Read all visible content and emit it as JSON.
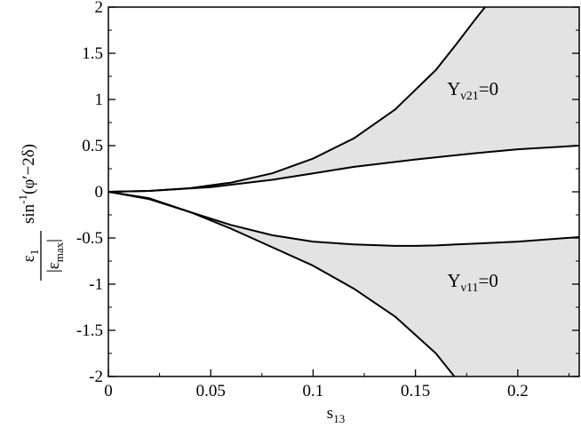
{
  "chart_data": {
    "type": "line",
    "title": "",
    "xlabel": {
      "main": "s",
      "sub": "13"
    },
    "ylabel": {
      "numerator": {
        "main": "ε",
        "sub": "1"
      },
      "denominator": {
        "open": "|",
        "main": "ε",
        "sub": "max",
        "close": "|"
      },
      "factor": {
        "main": "sin",
        "sup": "-1",
        "arg": "(φ′−2δ)"
      }
    },
    "xlim": [
      0,
      0.23
    ],
    "ylim": [
      -2,
      2
    ],
    "xticks": [
      0,
      0.05,
      0.1,
      0.15,
      0.2
    ],
    "xtick_labels": [
      "0",
      "0.05",
      "0.1",
      "0.15",
      "0.2"
    ],
    "yticks": [
      -2,
      -1.5,
      -1,
      -0.5,
      0,
      0.5,
      1,
      1.5,
      2
    ],
    "ytick_labels": [
      "-2",
      "-1.5",
      "-1",
      "-0.5",
      "0",
      "0.5",
      "1",
      "1.5",
      "2"
    ],
    "grid": false,
    "fill_color": "#e3e3e3",
    "line_color": "#000000",
    "series": [
      {
        "x": [
          0,
          0.02,
          0.04,
          0.06,
          0.08,
          0.1,
          0.12,
          0.14,
          0.16,
          0.17,
          0.18,
          0.184
        ],
        "y": [
          0,
          0.01,
          0.04,
          0.1,
          0.2,
          0.36,
          0.58,
          0.89,
          1.32,
          1.6,
          1.89,
          2.0
        ]
      },
      {
        "x": [
          0,
          0.02,
          0.05,
          0.08,
          0.1,
          0.12,
          0.15,
          0.18,
          0.2,
          0.23
        ],
        "y": [
          0,
          0.01,
          0.05,
          0.13,
          0.2,
          0.27,
          0.35,
          0.42,
          0.46,
          0.5
        ]
      },
      {
        "x": [
          0,
          0.02,
          0.04,
          0.06,
          0.08,
          0.1,
          0.12,
          0.14,
          0.15,
          0.16,
          0.18,
          0.2,
          0.23
        ],
        "y": [
          0,
          -0.08,
          -0.22,
          -0.36,
          -0.47,
          -0.54,
          -0.57,
          -0.585,
          -0.585,
          -0.58,
          -0.56,
          -0.54,
          -0.49
        ]
      },
      {
        "x": [
          0,
          0.02,
          0.04,
          0.06,
          0.08,
          0.1,
          0.12,
          0.14,
          0.16,
          0.169
        ],
        "y": [
          0,
          -0.07,
          -0.22,
          -0.4,
          -0.6,
          -0.8,
          -1.05,
          -1.35,
          -1.75,
          -2.0
        ]
      }
    ],
    "regions": [
      {
        "upper_series": 0,
        "lower_series": 1
      },
      {
        "upper_series": 2,
        "lower_series": 3
      }
    ],
    "annotations": [
      {
        "main": "Y",
        "sub": "ν21",
        "suffix": "=0",
        "x": 0.178,
        "y": 1.05
      },
      {
        "main": "Y",
        "sub": "ν11",
        "suffix": "=0",
        "x": 0.178,
        "y": -1.03
      }
    ]
  }
}
